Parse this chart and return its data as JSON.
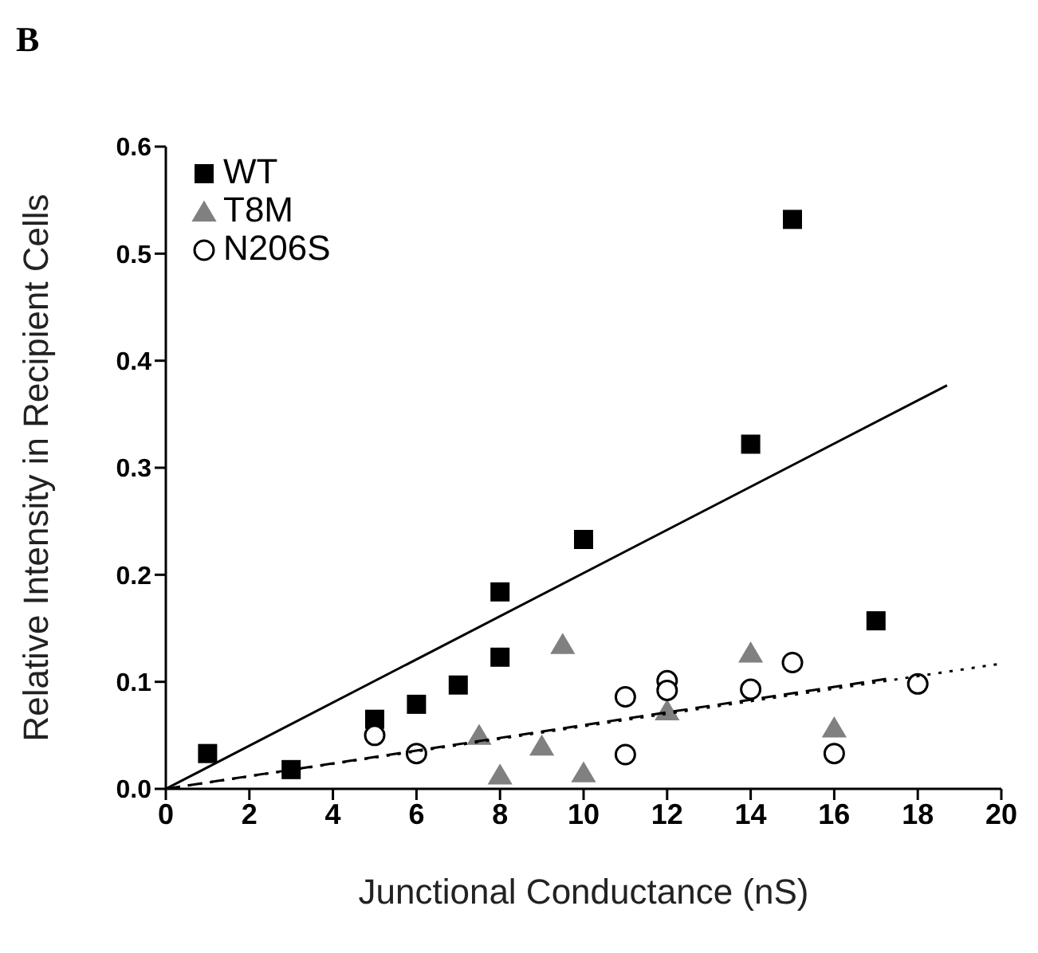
{
  "chart_data": {
    "type": "scatter",
    "annotations": [
      "B"
    ],
    "xlabel": "Junctional Conductance (nS)",
    "ylabel": "Relative Intensity in Recipient Cells",
    "xlim": [
      0,
      20
    ],
    "xticks": [
      0,
      2,
      4,
      6,
      8,
      10,
      12,
      14,
      16,
      18,
      20
    ],
    "ylim": [
      0,
      0.6
    ],
    "yticks": [
      {
        "value": 0,
        "label": "0.0"
      },
      0.1,
      0.2,
      0.3,
      0.4,
      0.5,
      0.6
    ],
    "legend": "top left",
    "series": [
      {
        "name": "WT",
        "color": "#000000",
        "marker": "square",
        "x": [
          1,
          3,
          5,
          6,
          7,
          8,
          8,
          10,
          14,
          15,
          17
        ],
        "values": [
          0.033,
          0.018,
          0.065,
          0.079,
          0.097,
          0.184,
          0.123,
          0.233,
          0.322,
          0.532,
          0.157
        ]
      },
      {
        "name": "T8M",
        "color": "#808080",
        "marker": "triangle",
        "x": [
          7.5,
          8,
          9,
          9.5,
          10,
          12,
          14,
          16
        ],
        "values": [
          0.05,
          0.013,
          0.04,
          0.135,
          0.015,
          0.073,
          0.127,
          0.057
        ]
      },
      {
        "name": "N206S",
        "color": "#000000",
        "marker": "circle",
        "x": [
          5,
          6,
          11,
          11,
          12,
          12,
          14,
          15,
          16,
          18
        ],
        "values": [
          0.05,
          0.033,
          0.086,
          0.032,
          0.101,
          0.092,
          0.093,
          0.118,
          0.033,
          0.098
        ]
      },
      {
        "type": "line",
        "color": "#000000",
        "line_style": "solid",
        "marker": "none",
        "x": [
          0,
          18.7
        ],
        "values": [
          0,
          0.377
        ]
      },
      {
        "type": "line",
        "color": "#000000",
        "line_style": "dashed",
        "marker": "none",
        "x": [
          0,
          17.3
        ],
        "values": [
          0,
          0.103
        ]
      },
      {
        "type": "line",
        "color": "#000000",
        "line_style": "dotted",
        "marker": "none",
        "x": [
          0,
          20
        ],
        "values": [
          0,
          0.117
        ]
      }
    ]
  }
}
